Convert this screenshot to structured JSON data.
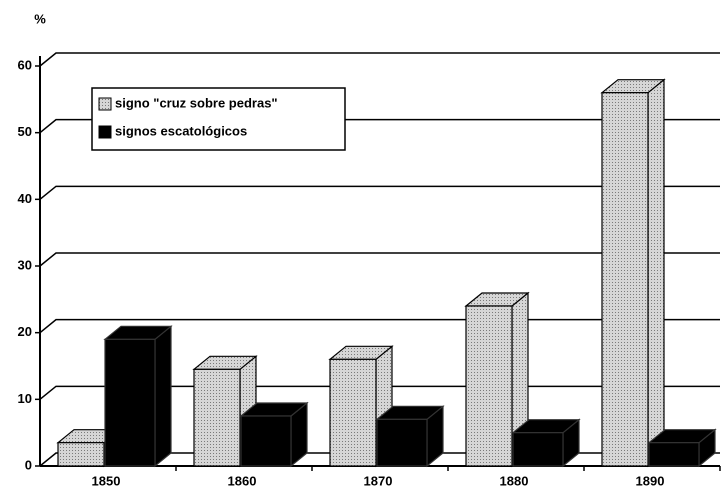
{
  "chart_data": {
    "type": "bar3d",
    "y_axis_label": "%",
    "categories": [
      "1850",
      "1860",
      "1870",
      "1880",
      "1890"
    ],
    "series": [
      {
        "name": "signo \"cruz sobre pedras\"",
        "color": "#c4c4c4",
        "values": [
          3.5,
          14.5,
          16,
          24,
          56
        ]
      },
      {
        "name": "signos escatológicos",
        "color": "#000000",
        "values": [
          19,
          7.5,
          7,
          5,
          3.5
        ]
      }
    ],
    "ylim": [
      0,
      60
    ],
    "yticks": [
      0,
      10,
      20,
      30,
      40,
      50,
      60
    ],
    "grid": true,
    "legend": "upper left"
  }
}
